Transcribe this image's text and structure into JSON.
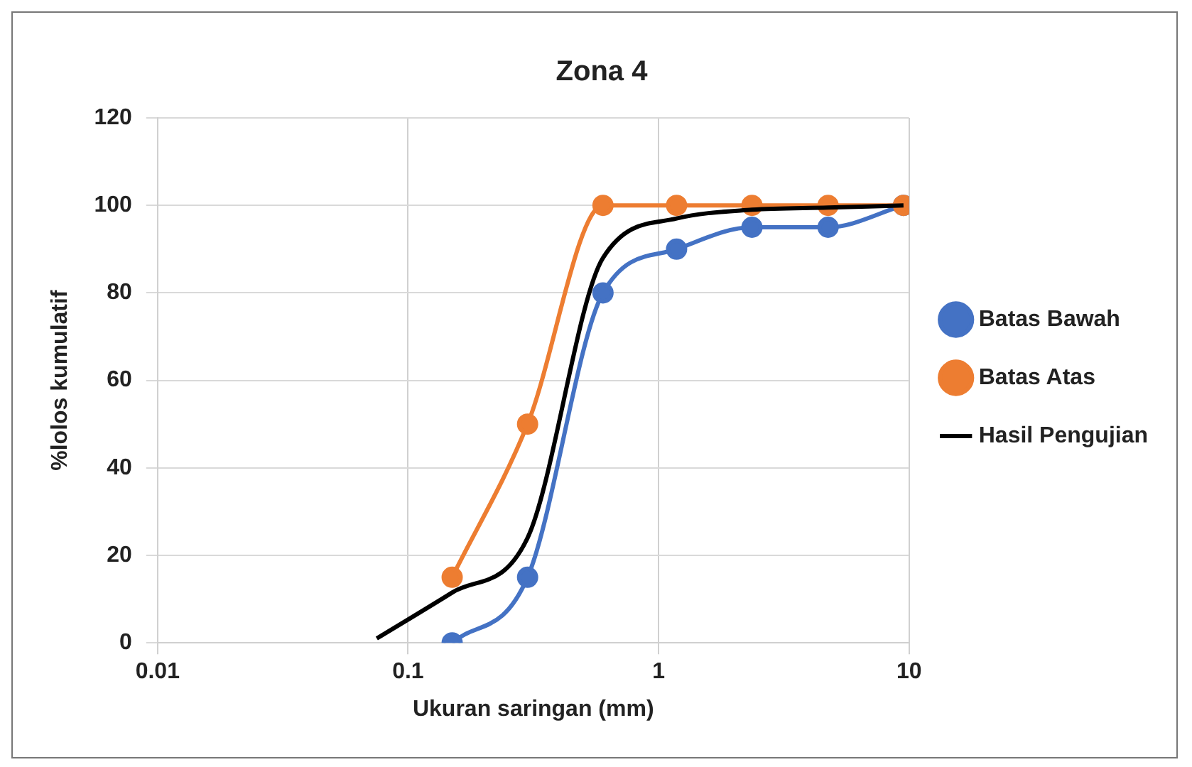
{
  "chart_data": {
    "type": "line",
    "title": "Zona 4",
    "xlabel": "Ukuran saringan (mm)",
    "ylabel": "%lolos kumulatif",
    "log": "x",
    "xlim": [
      0.01,
      10
    ],
    "xticks": [
      0.01,
      0.1,
      1,
      10
    ],
    "ylim": [
      0,
      120
    ],
    "yticks": [
      0,
      20,
      40,
      60,
      80,
      100,
      120
    ],
    "grid": true,
    "legend": "right",
    "marker": "circle",
    "line_style": "solid",
    "series": [
      {
        "name": "Batas Bawah",
        "color": "#4472c4",
        "x": [
          0.15,
          0.3,
          0.6,
          1.18,
          2.36,
          4.75,
          9.5
        ],
        "values": [
          0,
          15,
          80,
          90,
          95,
          95,
          100
        ]
      },
      {
        "name": "Batas Atas",
        "color": "#ed7d31",
        "x": [
          0.15,
          0.3,
          0.6,
          1.18,
          2.36,
          4.75,
          9.5
        ],
        "values": [
          15,
          50,
          100,
          100,
          100,
          100,
          100
        ]
      },
      {
        "name": "Hasil Pengujian",
        "color": "#000000",
        "marker": "none",
        "x": [
          0.075,
          0.15,
          0.3,
          0.6,
          1.18,
          2.36,
          4.75,
          9.5
        ],
        "values": [
          1,
          11.5,
          24,
          88,
          97,
          99,
          99.5,
          100
        ]
      }
    ]
  }
}
